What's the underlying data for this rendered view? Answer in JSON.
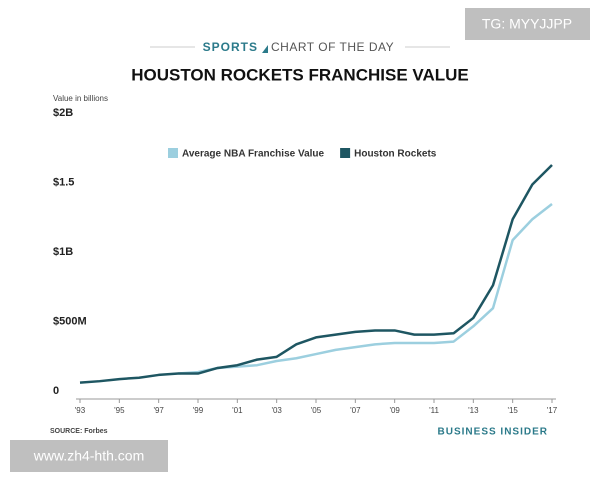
{
  "chart_data": {
    "type": "line",
    "kicker": "SPORTS",
    "kicker_rest": "CHART OF THE DAY",
    "title": "HOUSTON ROCKETS FRANCHISE VALUE",
    "y_label": "Value in billions",
    "x": [
      1993,
      1994,
      1995,
      1996,
      1997,
      1998,
      1999,
      2000,
      2001,
      2002,
      2003,
      2004,
      2005,
      2006,
      2007,
      2008,
      2009,
      2010,
      2011,
      2012,
      2013,
      2014,
      2015,
      2016,
      2017
    ],
    "series": [
      {
        "name": "Average NBA Franchise Value",
        "color": "#9ccfdf",
        "values": [
          null,
          null,
          null,
          null,
          null,
          0.14,
          0.15,
          0.18,
          0.19,
          0.2,
          0.23,
          0.25,
          0.28,
          0.31,
          0.33,
          0.35,
          0.36,
          0.36,
          0.36,
          0.37,
          0.48,
          0.61,
          1.1,
          1.25,
          1.36
        ]
      },
      {
        "name": "Houston Rockets",
        "color": "#1e5662",
        "values": [
          0.075,
          0.085,
          0.1,
          0.11,
          0.13,
          0.14,
          0.14,
          0.18,
          0.2,
          0.24,
          0.26,
          0.35,
          0.4,
          0.42,
          0.44,
          0.45,
          0.45,
          0.42,
          0.42,
          0.43,
          0.54,
          0.775,
          1.25,
          1.5,
          1.64
        ]
      }
    ],
    "xlim": [
      1993,
      2017
    ],
    "xticks": [
      {
        "value": 1993,
        "label": "'93"
      },
      {
        "value": 1995,
        "label": "'95"
      },
      {
        "value": 1997,
        "label": "'97"
      },
      {
        "value": 1999,
        "label": "'99"
      },
      {
        "value": 2001,
        "label": "'01"
      },
      {
        "value": 2003,
        "label": "'03"
      },
      {
        "value": 2005,
        "label": "'05"
      },
      {
        "value": 2007,
        "label": "'07"
      },
      {
        "value": 2009,
        "label": "'09"
      },
      {
        "value": 2011,
        "label": "'11"
      },
      {
        "value": 2013,
        "label": "'13"
      },
      {
        "value": 2015,
        "label": "'15"
      },
      {
        "value": 2017,
        "label": "'17"
      }
    ],
    "ylim": [
      0,
      2
    ],
    "yticks": [
      0,
      {
        "value": 0.5,
        "label": "$500M"
      },
      {
        "value": 1,
        "label": "$1B"
      },
      {
        "value": 1.5,
        "label": "$1.5"
      },
      {
        "value": 2,
        "label": "$2B"
      }
    ],
    "grid": false,
    "legend": "top",
    "source": "SOURCE: Forbes",
    "brand": "BUSINESS INSIDER",
    "watermark_top": "TG: MYYJJPP",
    "watermark_bottom": "www.zh4-hth.com"
  }
}
